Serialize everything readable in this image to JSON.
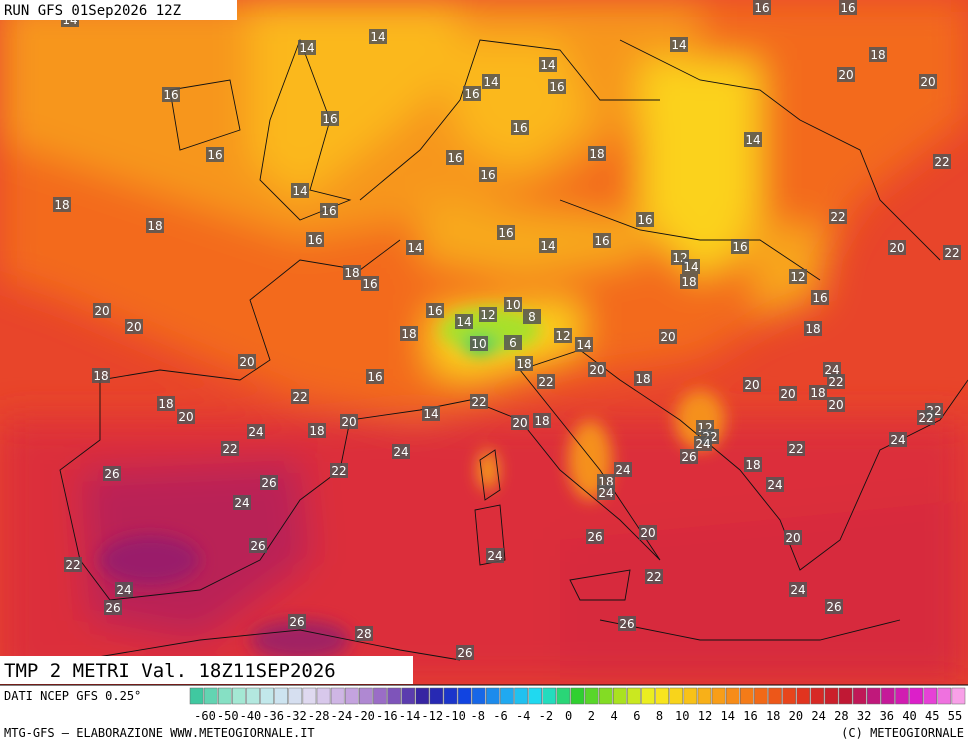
{
  "header": {
    "run": "RUN GFS 01Sep2026 12Z",
    "title": "TMP 2 METRI Val. 18Z11SEP2026"
  },
  "footer": {
    "source": "DATI NCEP GFS 0.25°",
    "credit": "MTG-GFS — ELABORAZIONE WWW.METEOGIORNALE.IT",
    "copyright": "(C) METEOGIORNALE"
  },
  "scale_labels": [
    "-60",
    "-50",
    "-40",
    "-36",
    "-32",
    "-28",
    "-24",
    "-20",
    "-16",
    "-14",
    "-12",
    "-10",
    "-8",
    "-6",
    "-4",
    "-2",
    "0",
    "2",
    "4",
    "6",
    "8",
    "10",
    "12",
    "14",
    "16",
    "18",
    "20",
    "24",
    "28",
    "32",
    "36",
    "40",
    "45",
    "55"
  ],
  "map_labels": [
    "14",
    "14",
    "14",
    "16",
    "16",
    "16",
    "14",
    "16",
    "18",
    "18",
    "16",
    "14",
    "16",
    "16",
    "16",
    "14",
    "14",
    "16",
    "16",
    "18",
    "14",
    "16",
    "16",
    "18",
    "20",
    "20",
    "14",
    "22",
    "22",
    "20",
    "22",
    "12",
    "16",
    "18",
    "16",
    "16",
    "16",
    "14",
    "16",
    "12",
    "14",
    "18",
    "18",
    "16",
    "20",
    "20",
    "20",
    "16",
    "18",
    "14",
    "12",
    "10",
    "8",
    "10",
    "6",
    "12",
    "14",
    "18",
    "22",
    "20",
    "20",
    "18",
    "20",
    "20",
    "18",
    "24",
    "22",
    "20",
    "22",
    "22",
    "24",
    "16",
    "18",
    "18",
    "20",
    "22",
    "14",
    "22",
    "20",
    "18",
    "20",
    "18",
    "24",
    "22",
    "24",
    "12",
    "22",
    "24",
    "26",
    "22",
    "18",
    "24",
    "18",
    "24",
    "24",
    "22",
    "26",
    "26",
    "24",
    "26",
    "26",
    "20",
    "20",
    "24",
    "22",
    "24",
    "26",
    "22",
    "24",
    "26",
    "26",
    "28",
    "26",
    "26"
  ]
}
